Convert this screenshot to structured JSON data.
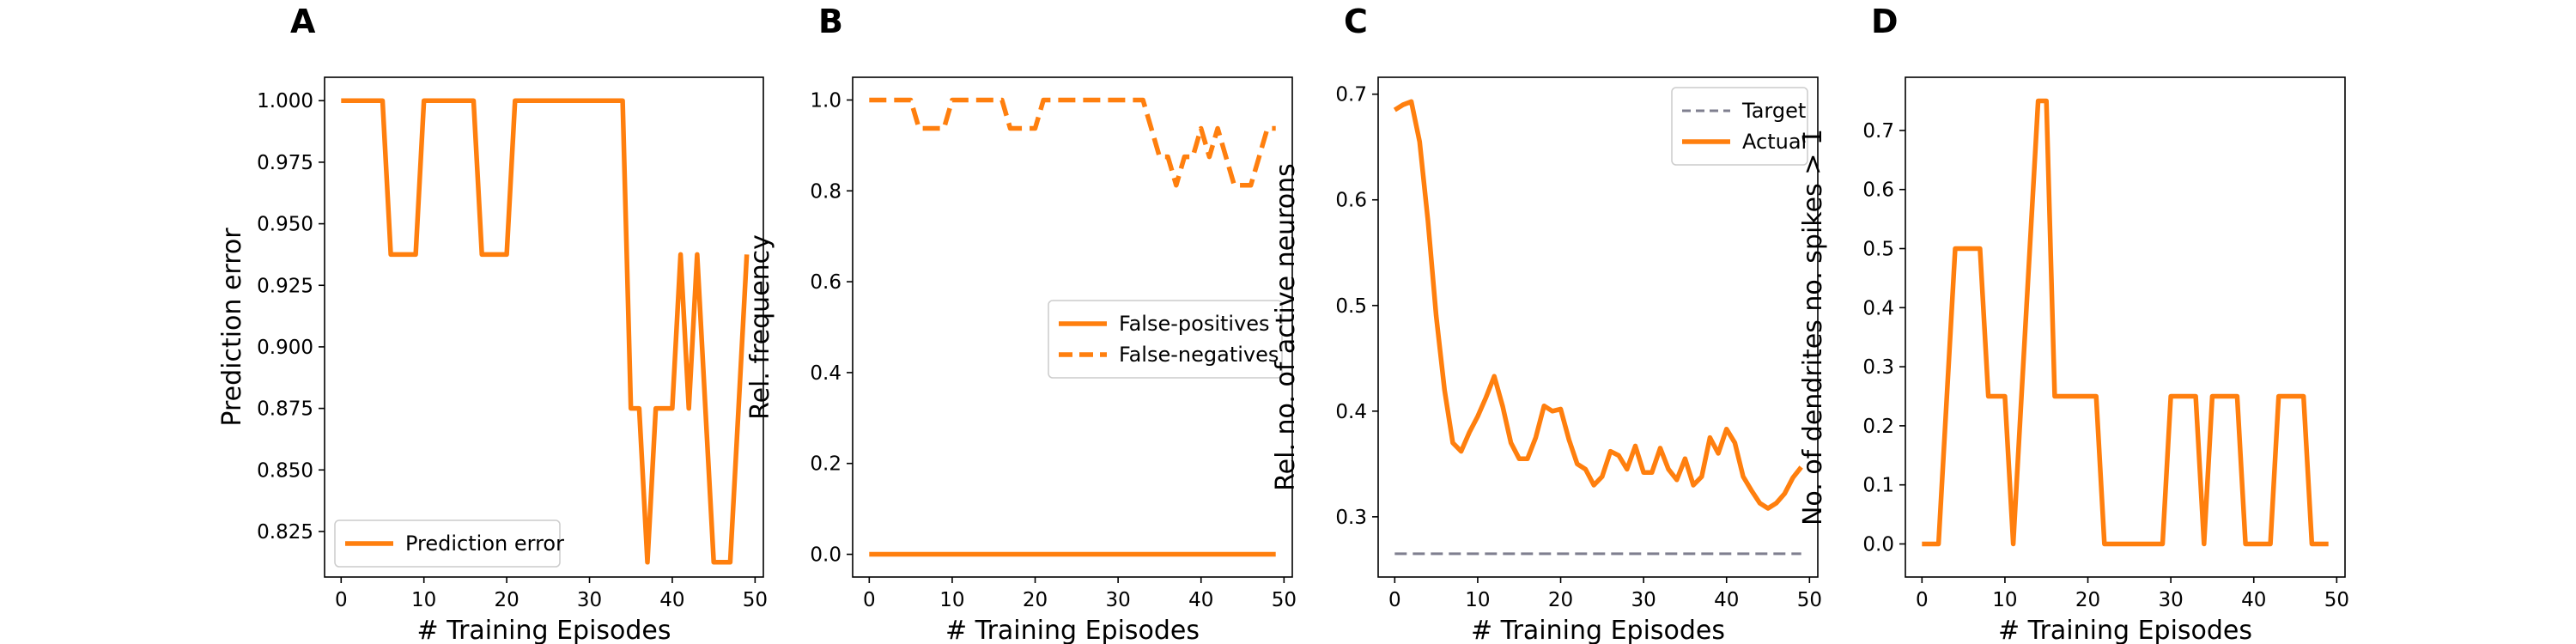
{
  "colors": {
    "series": "#ff7f0e",
    "target": "#7f7f8f",
    "axis": "#000000"
  },
  "chart_data": [
    {
      "panel_letter": "A",
      "type": "line",
      "xlabel": "# Training Episodes",
      "ylabel": "Prediction error",
      "xlim": [
        -2,
        51
      ],
      "ylim": [
        0.8065,
        1.0095
      ],
      "xticks": [
        0,
        10,
        20,
        30,
        40,
        50
      ],
      "yticks": [
        0.825,
        0.85,
        0.875,
        0.9,
        0.925,
        0.95,
        0.975,
        1.0
      ],
      "ytick_labels": [
        "0.825",
        "0.850",
        "0.875",
        "0.900",
        "0.925",
        "0.950",
        "0.975",
        "1.000"
      ],
      "legend_position": "lower-left",
      "series": [
        {
          "name": "Prediction error",
          "style": "solid",
          "x": [
            0,
            1,
            2,
            3,
            4,
            5,
            6,
            7,
            8,
            9,
            10,
            11,
            12,
            13,
            14,
            15,
            16,
            17,
            18,
            19,
            20,
            21,
            22,
            23,
            24,
            25,
            26,
            27,
            28,
            29,
            30,
            31,
            32,
            33,
            34,
            35,
            36,
            37,
            38,
            39,
            40,
            41,
            42,
            43,
            44,
            45,
            46,
            47,
            48,
            49
          ],
          "y": [
            1.0,
            1.0,
            1.0,
            1.0,
            1.0,
            1.0,
            0.9375,
            0.9375,
            0.9375,
            0.9375,
            1.0,
            1.0,
            1.0,
            1.0,
            1.0,
            1.0,
            1.0,
            0.9375,
            0.9375,
            0.9375,
            0.9375,
            1.0,
            1.0,
            1.0,
            1.0,
            1.0,
            1.0,
            1.0,
            1.0,
            1.0,
            1.0,
            1.0,
            1.0,
            1.0,
            1.0,
            0.875,
            0.875,
            0.8125,
            0.875,
            0.875,
            0.875,
            0.9375,
            0.875,
            0.9375,
            0.875,
            0.8125,
            0.8125,
            0.8125,
            0.875,
            0.9375
          ]
        }
      ]
    },
    {
      "panel_letter": "B",
      "type": "line",
      "xlabel": "# Training Episodes",
      "ylabel": "Rel. frequency",
      "xlim": [
        -2,
        51
      ],
      "ylim": [
        -0.05,
        1.05
      ],
      "xticks": [
        0,
        10,
        20,
        30,
        40,
        50
      ],
      "yticks": [
        0.0,
        0.2,
        0.4,
        0.6,
        0.8,
        1.0
      ],
      "ytick_labels": [
        "0.0",
        "0.2",
        "0.4",
        "0.6",
        "0.8",
        "1.0"
      ],
      "legend_position": "center-right",
      "series": [
        {
          "name": "False-positives",
          "style": "solid",
          "x": [
            0,
            49
          ],
          "y": [
            0.0,
            0.0
          ]
        },
        {
          "name": "False-negatives",
          "style": "dashed",
          "x": [
            0,
            1,
            2,
            3,
            4,
            5,
            6,
            7,
            8,
            9,
            10,
            11,
            12,
            13,
            14,
            15,
            16,
            17,
            18,
            19,
            20,
            21,
            22,
            23,
            24,
            25,
            26,
            27,
            28,
            29,
            30,
            31,
            32,
            33,
            34,
            35,
            36,
            37,
            38,
            39,
            40,
            41,
            42,
            43,
            44,
            45,
            46,
            47,
            48,
            49
          ],
          "y": [
            1.0,
            1.0,
            1.0,
            1.0,
            1.0,
            1.0,
            0.9375,
            0.9375,
            0.9375,
            0.9375,
            1.0,
            1.0,
            1.0,
            1.0,
            1.0,
            1.0,
            1.0,
            0.9375,
            0.9375,
            0.9375,
            0.9375,
            1.0,
            1.0,
            1.0,
            1.0,
            1.0,
            1.0,
            1.0,
            1.0,
            1.0,
            1.0,
            1.0,
            1.0,
            1.0,
            0.9375,
            0.875,
            0.875,
            0.8125,
            0.875,
            0.875,
            0.9375,
            0.875,
            0.9375,
            0.875,
            0.8125,
            0.8125,
            0.8125,
            0.875,
            0.9375,
            0.9375
          ]
        }
      ]
    },
    {
      "panel_letter": "C",
      "type": "line",
      "xlabel": "# Training Episodes",
      "ylabel": "Rel. no. of active neurons",
      "xlim": [
        -2,
        51
      ],
      "ylim": [
        0.243,
        0.716
      ],
      "xticks": [
        0,
        10,
        20,
        30,
        40,
        50
      ],
      "yticks": [
        0.3,
        0.4,
        0.5,
        0.6,
        0.7
      ],
      "ytick_labels": [
        "0.3",
        "0.4",
        "0.5",
        "0.6",
        "0.7"
      ],
      "legend_position": "upper-right",
      "series": [
        {
          "name": "Target",
          "style": "dashed-thin",
          "x": [
            0,
            49
          ],
          "y": [
            0.265,
            0.265
          ]
        },
        {
          "name": "Actual",
          "style": "solid",
          "x": [
            0,
            1,
            2,
            3,
            4,
            5,
            6,
            7,
            8,
            9,
            10,
            11,
            12,
            13,
            14,
            15,
            16,
            17,
            18,
            19,
            20,
            21,
            22,
            23,
            24,
            25,
            26,
            27,
            28,
            29,
            30,
            31,
            32,
            33,
            34,
            35,
            36,
            37,
            38,
            39,
            40,
            41,
            42,
            43,
            44,
            45,
            46,
            47,
            48,
            49
          ],
          "y": [
            0.685,
            0.69,
            0.693,
            0.655,
            0.58,
            0.49,
            0.42,
            0.37,
            0.362,
            0.38,
            0.395,
            0.413,
            0.433,
            0.405,
            0.37,
            0.355,
            0.355,
            0.375,
            0.405,
            0.4,
            0.402,
            0.373,
            0.35,
            0.345,
            0.33,
            0.338,
            0.362,
            0.358,
            0.345,
            0.367,
            0.342,
            0.342,
            0.365,
            0.345,
            0.335,
            0.355,
            0.33,
            0.338,
            0.375,
            0.36,
            0.383,
            0.37,
            0.338,
            0.325,
            0.313,
            0.308,
            0.313,
            0.322,
            0.337,
            0.347
          ]
        }
      ]
    },
    {
      "panel_letter": "D",
      "type": "line",
      "xlabel": "# Training Episodes",
      "ylabel": "No. of dendrites no. spikes > 1",
      "xlim": [
        -2,
        51
      ],
      "ylim": [
        -0.056,
        0.79
      ],
      "xticks": [
        0,
        10,
        20,
        30,
        40,
        50
      ],
      "yticks": [
        0.0,
        0.1,
        0.2,
        0.3,
        0.4,
        0.5,
        0.6,
        0.7
      ],
      "ytick_labels": [
        "0.0",
        "0.1",
        "0.2",
        "0.3",
        "0.4",
        "0.5",
        "0.6",
        "0.7"
      ],
      "legend_position": "none",
      "series": [
        {
          "name": "",
          "style": "solid",
          "x": [
            0,
            1,
            2,
            3,
            4,
            5,
            6,
            7,
            8,
            9,
            10,
            11,
            12,
            13,
            14,
            15,
            16,
            17,
            18,
            19,
            20,
            21,
            22,
            23,
            24,
            25,
            26,
            27,
            28,
            29,
            30,
            31,
            32,
            33,
            34,
            35,
            36,
            37,
            38,
            39,
            40,
            41,
            42,
            43,
            44,
            45,
            46,
            47,
            48,
            49
          ],
          "y": [
            0,
            0,
            0,
            0.25,
            0.5,
            0.5,
            0.5,
            0.5,
            0.25,
            0.25,
            0.25,
            0,
            0.25,
            0.5,
            0.75,
            0.75,
            0.25,
            0.25,
            0.25,
            0.25,
            0.25,
            0.25,
            0,
            0,
            0,
            0,
            0,
            0,
            0,
            0,
            0.25,
            0.25,
            0.25,
            0.25,
            0,
            0.25,
            0.25,
            0.25,
            0.25,
            0,
            0,
            0,
            0,
            0.25,
            0.25,
            0.25,
            0.25,
            0,
            0,
            0
          ]
        }
      ]
    }
  ]
}
